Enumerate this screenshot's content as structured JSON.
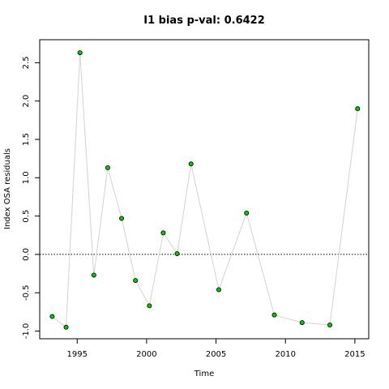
{
  "chart_data": {
    "type": "line",
    "title": "I1 bias p-val: 0.6422",
    "title_color": "#228B22",
    "xlabel": "Time",
    "ylabel": "Index OSA residuals",
    "xlim": [
      1992.3,
      2016.0
    ],
    "ylim": [
      -1.1,
      2.8
    ],
    "xticks": [
      1995,
      2000,
      2005,
      2010,
      2015
    ],
    "yticks": [
      -1.0,
      -0.5,
      0.0,
      0.5,
      1.0,
      1.5,
      2.0,
      2.5
    ],
    "ytick_labels": [
      "-1.0",
      "-0.5",
      "0.0",
      "0.5",
      "1.0",
      "1.5",
      "2.0",
      "2.5"
    ],
    "reference_line": 0.0,
    "reference_style": "dotted",
    "line_color": "#d3d3d3",
    "point_fill": "#00cc00",
    "point_stroke": "#000000",
    "grid": false,
    "series": [
      {
        "x": [
          1993.2,
          1994.2,
          1995.2,
          1996.2,
          1997.2,
          1998.2,
          1999.2,
          2000.2,
          2001.2,
          2002.2,
          2003.2,
          2005.2,
          2007.2,
          2009.2,
          2011.2,
          2013.2,
          2015.2
        ],
        "values": [
          -0.81,
          -0.95,
          2.63,
          -0.27,
          1.13,
          0.47,
          -0.34,
          -0.67,
          0.28,
          0.01,
          1.18,
          -0.46,
          0.54,
          -0.79,
          -0.89,
          -0.92,
          1.9
        ]
      }
    ]
  }
}
